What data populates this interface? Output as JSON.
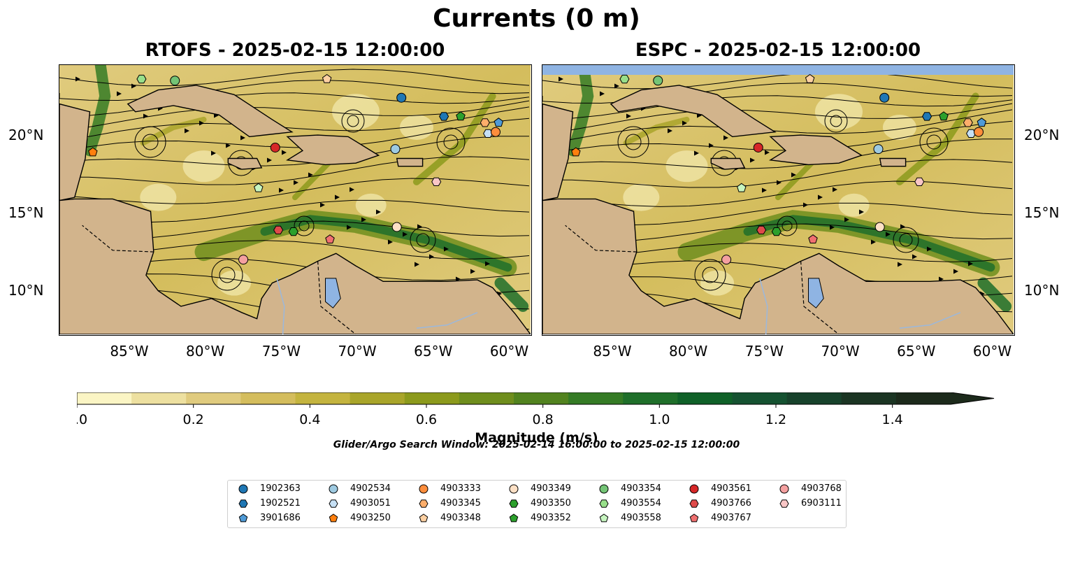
{
  "figure": {
    "suptitle": "Currents (0 m)",
    "panels": [
      {
        "title": "RTOFS - 2025-02-15 12:00:00"
      },
      {
        "title": "ESPC - 2025-02-15 12:00:00"
      }
    ],
    "lon_ticks": [
      "85°W",
      "80°W",
      "75°W",
      "70°W",
      "65°W",
      "60°W"
    ],
    "lat_ticks": [
      "20°N",
      "15°N",
      "10°N"
    ],
    "colorbar": {
      "label": "Magnitude (m/s)",
      "ticks": [
        "0.0",
        "0.2",
        "0.4",
        "0.6",
        "0.8",
        "1.0",
        "1.2",
        "1.4"
      ],
      "colors": [
        "#fbf5c4",
        "#ede0a0",
        "#e0cb7e",
        "#d4bd5d",
        "#c4b43f",
        "#a9a52a",
        "#8c9a1c",
        "#6f8e1d",
        "#52831f",
        "#357b25",
        "#1f6f2a",
        "#0f6128",
        "#155231",
        "#17422b",
        "#1b3523",
        "#1c2a1b"
      ]
    },
    "search_window": "Glider/Argo Search Window: 2025-02-14 16:00:00 to 2025-02-15 12:00:00",
    "colors": {
      "land": "#d2b48c",
      "water_body": "#8fb4e3",
      "rivers": "#9bb8dc"
    }
  },
  "chart_data": {
    "type": "scatter",
    "title": "Currents (0 m)",
    "variable": "Magnitude (m/s)",
    "colorbar_range": [
      0.0,
      1.5
    ],
    "colorbar_extend": "max",
    "lon_range": [
      -89.5,
      -58.5
    ],
    "lat_range": [
      7.2,
      24.5
    ],
    "panels": [
      "RTOFS - 2025-02-15 12:00:00",
      "ESPC - 2025-02-15 12:00:00"
    ],
    "platforms": [
      {
        "id": "1902363",
        "marker": "circle",
        "color": "#1f77b4",
        "lon": -67.0,
        "lat": 22.4
      },
      {
        "id": "1902521",
        "marker": "hexagon",
        "color": "#1f77b4",
        "lon": -64.2,
        "lat": 21.2
      },
      {
        "id": "3901686",
        "marker": "pentagon",
        "color": "#4f9ad6",
        "lon": -60.6,
        "lat": 20.8
      },
      {
        "id": "4902534",
        "marker": "circle",
        "color": "#9ecae1",
        "lon": -67.4,
        "lat": 19.1
      },
      {
        "id": "4903051",
        "marker": "hexagon",
        "color": "#c6e0f5",
        "lon": -61.3,
        "lat": 20.1
      },
      {
        "id": "4903250",
        "marker": "pentagon",
        "color": "#ff7f0e",
        "lon": -87.3,
        "lat": 18.9
      },
      {
        "id": "4903333",
        "marker": "circle",
        "color": "#fd8d3c",
        "lon": -60.8,
        "lat": 20.2
      },
      {
        "id": "4903345",
        "marker": "hexagon",
        "color": "#fdae6b",
        "lon": -61.5,
        "lat": 20.8
      },
      {
        "id": "4903348",
        "marker": "pentagon",
        "color": "#fdd0a2",
        "lon": -71.9,
        "lat": 23.6
      },
      {
        "id": "4903349",
        "marker": "circle",
        "color": "#fde0c5",
        "lon": -67.3,
        "lat": 14.1
      },
      {
        "id": "4903350",
        "marker": "hexagon",
        "color": "#2ca02c",
        "lon": -74.1,
        "lat": 13.8
      },
      {
        "id": "4903352",
        "marker": "pentagon",
        "color": "#2ca02c",
        "lon": -63.1,
        "lat": 21.2
      },
      {
        "id": "4903354",
        "marker": "circle",
        "color": "#74c476",
        "lon": -81.9,
        "lat": 23.5
      },
      {
        "id": "4903554",
        "marker": "hexagon",
        "color": "#98df8a",
        "lon": -84.1,
        "lat": 23.6
      },
      {
        "id": "4903558",
        "marker": "pentagon",
        "color": "#c7f5c0",
        "lon": -76.4,
        "lat": 16.6
      },
      {
        "id": "4903561",
        "marker": "circle",
        "color": "#d62728",
        "lon": -75.3,
        "lat": 19.2
      },
      {
        "id": "4903766",
        "marker": "hexagon",
        "color": "#de4a4a",
        "lon": -75.1,
        "lat": 13.9
      },
      {
        "id": "4903767",
        "marker": "pentagon",
        "color": "#f07070",
        "lon": -71.7,
        "lat": 13.3
      },
      {
        "id": "4903768",
        "marker": "circle",
        "color": "#f4a0a0",
        "lon": -77.4,
        "lat": 12.0
      },
      {
        "id": "6903111",
        "marker": "hexagon",
        "color": "#f9c6c6",
        "lon": -64.7,
        "lat": 17.0
      }
    ]
  }
}
